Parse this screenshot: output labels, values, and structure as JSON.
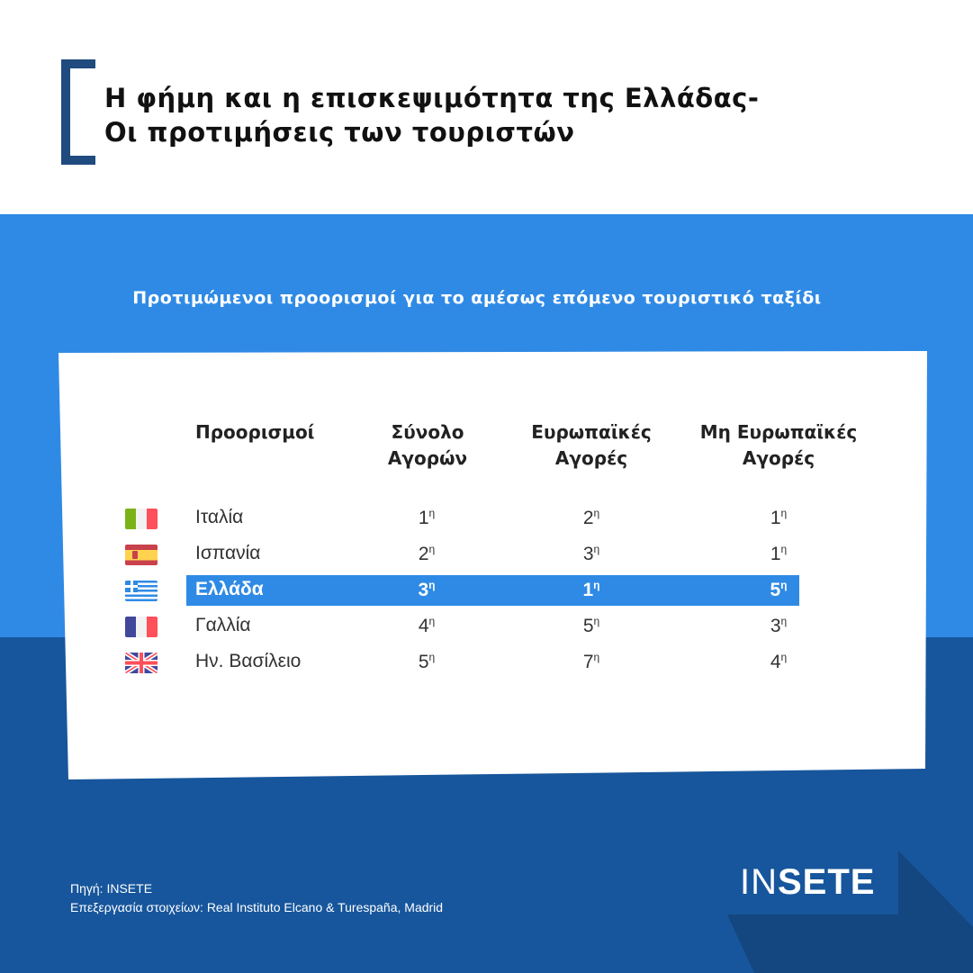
{
  "header": {
    "title_line1": "Η φήμη και η επισκεψιμότητα της Ελλάδας-",
    "title_line2": "Οι προτιμήσεις των τουριστών"
  },
  "subtitle": "Προτιμώμενοι προορισμοί για το αμέσως επόμενο τουριστικό ταξίδι",
  "table": {
    "headers": {
      "dest": "Προορισμοί",
      "total_1": "Σύνολο",
      "total_2": "Αγορών",
      "eu_1": "Ευρωπαϊκές",
      "eu_2": "Αγορές",
      "noneu_1": "Μη Ευρωπαϊκές",
      "noneu_2": "Αγορές"
    },
    "suffix": "η",
    "rows": [
      {
        "flag": "italy-flag",
        "name": "Ιταλία",
        "total": "1",
        "eu": "2",
        "noneu": "1",
        "highlight": false
      },
      {
        "flag": "spain-flag",
        "name": "Ισπανία",
        "total": "2",
        "eu": "3",
        "noneu": "1",
        "highlight": false
      },
      {
        "flag": "greece-flag",
        "name": "Ελλάδα",
        "total": "3",
        "eu": "1",
        "noneu": "5",
        "highlight": true
      },
      {
        "flag": "france-flag",
        "name": "Γαλλία",
        "total": "4",
        "eu": "5",
        "noneu": "3",
        "highlight": false
      },
      {
        "flag": "uk-flag",
        "name": "Ην. Βασίλειο",
        "total": "5",
        "eu": "7",
        "noneu": "4",
        "highlight": false
      }
    ]
  },
  "footer": {
    "source": "Πηγή: INSETE",
    "processing": "Επεξεργασία στοιχείων: Real Instituto Elcano & Turespaña, Madrid",
    "logo_light": "IN",
    "logo_bold": "SETE"
  },
  "colors": {
    "accent": "#2f8ae5",
    "dark": "#17569c",
    "bracket": "#1f4b7e"
  }
}
